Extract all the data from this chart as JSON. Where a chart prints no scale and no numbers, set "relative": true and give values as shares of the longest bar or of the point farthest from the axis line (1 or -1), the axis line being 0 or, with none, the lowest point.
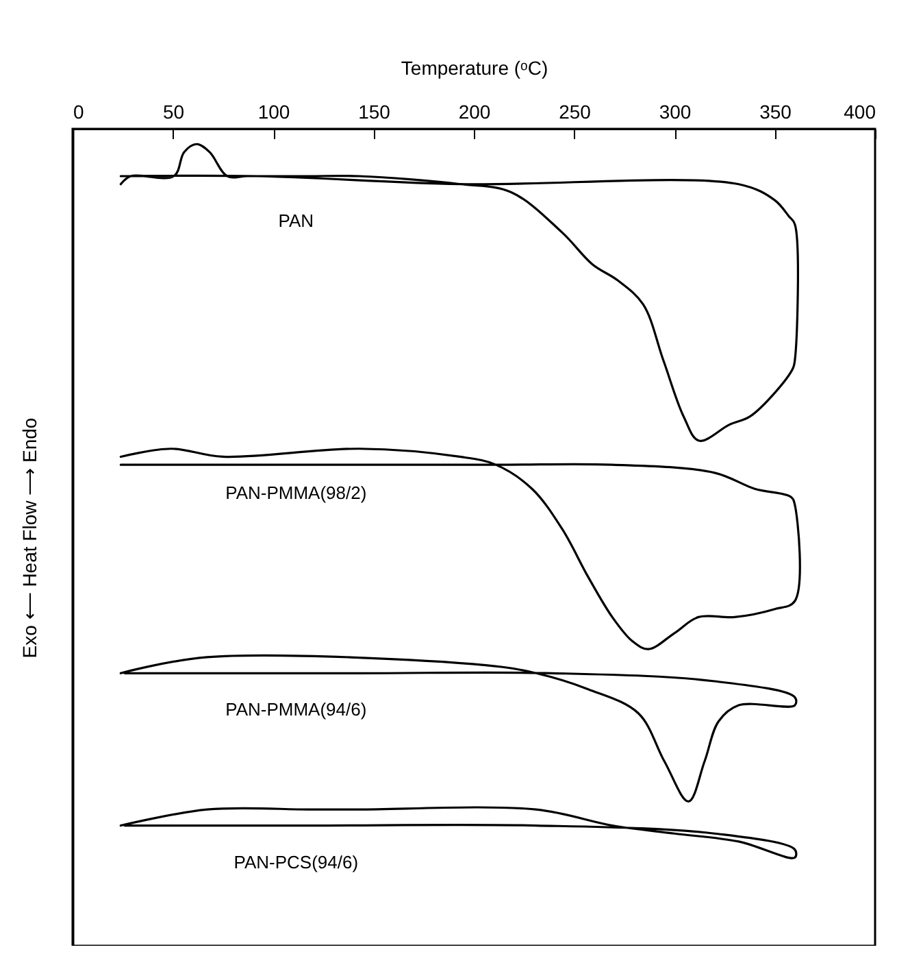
{
  "chart_data": {
    "type": "line",
    "relative": true,
    "xlabel": "Temperature (ᵒC)",
    "ylabel": "Exo ⟵ Heat Flow ⟶ Endo",
    "xlim": [
      0,
      400
    ],
    "xticks": [
      0,
      50,
      100,
      150,
      200,
      250,
      300,
      350,
      400
    ],
    "grid": false,
    "legend": false,
    "marker": "none",
    "line_style": "solid",
    "series": [
      {
        "name": "PAN",
        "color": "#000000",
        "x": [
          24,
          29,
          50.5,
          55.6,
          61.9,
          68.3,
          77.1,
          87.2,
          117.5,
          142.8,
          193.4,
          218.6,
          243.9,
          259.1,
          271.7,
          284.4,
          294.5,
          304.6,
          312.2,
          327.4,
          337.5,
          350.1,
          359,
          360,
          360,
          357,
          350,
          332,
          193,
          92,
          24
        ],
        "values": [
          0.95,
          0.96,
          0.96,
          0.99,
          1.0,
          0.99,
          0.96,
          0.96,
          0.96,
          0.96,
          0.95,
          0.94,
          0.89,
          0.85,
          0.83,
          0.8,
          0.73,
          0.66,
          0.63,
          0.65,
          0.66,
          0.69,
          0.72,
          0.73,
          0.9,
          0.91,
          0.93,
          0.95,
          0.95,
          0.96,
          0.96
        ]
      },
      {
        "name": "PAN-PMMA(98/2)",
        "color": "#000000",
        "x": [
          24,
          49,
          75,
          143,
          193,
          211,
          229,
          244,
          257,
          269,
          279,
          287,
          300,
          312,
          330,
          350,
          360,
          360,
          358,
          340,
          320,
          269,
          211,
          92,
          24
        ],
        "values": [
          0.61,
          0.62,
          0.61,
          0.62,
          0.61,
          0.6,
          0.57,
          0.52,
          0.46,
          0.41,
          0.38,
          0.37,
          0.39,
          0.41,
          0.41,
          0.42,
          0.43,
          0.55,
          0.56,
          0.57,
          0.59,
          0.6,
          0.6,
          0.6,
          0.6
        ]
      },
      {
        "name": "PAN-PMMA(94/6)",
        "color": "#000000",
        "x": [
          24,
          67,
          206,
          231,
          257,
          282,
          295,
          307,
          315,
          322,
          332,
          360,
          360,
          320,
          239,
          143,
          26
        ],
        "values": [
          0.34,
          0.36,
          0.35,
          0.34,
          0.32,
          0.29,
          0.23,
          0.18,
          0.23,
          0.28,
          0.3,
          0.3,
          0.31,
          0.33,
          0.34,
          0.34,
          0.34
        ]
      },
      {
        "name": "PAN-PCS(94/6)",
        "color": "#000000",
        "x": [
          24,
          67,
          118,
          143,
          231,
          269,
          300,
          332,
          360,
          360,
          320,
          231,
          118,
          26
        ],
        "values": [
          0.15,
          0.17,
          0.17,
          0.17,
          0.17,
          0.15,
          0.14,
          0.13,
          0.11,
          0.12,
          0.14,
          0.15,
          0.15,
          0.15
        ]
      }
    ]
  }
}
